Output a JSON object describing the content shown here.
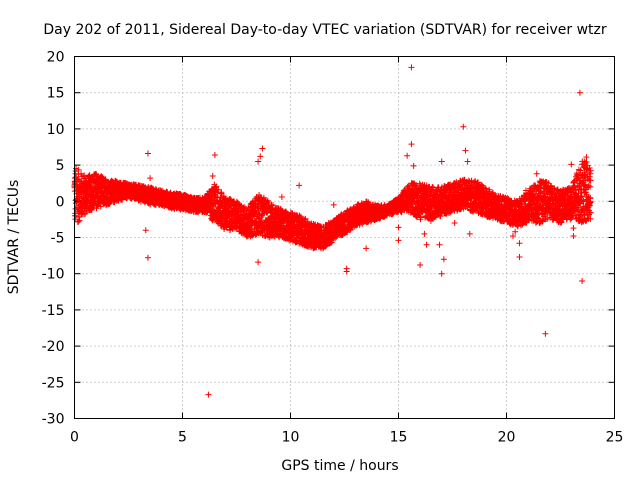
{
  "chart_data": {
    "type": "scatter",
    "title": "Day 202 of 2011, Sidereal Day-to-day VTEC variation (SDTVAR) for receiver wtzr",
    "xlabel": "GPS time / hours",
    "ylabel": "SDTVAR / TECUs",
    "xlim": [
      0,
      25
    ],
    "ylim": [
      -30,
      20
    ],
    "xticks": [
      0,
      5,
      10,
      15,
      20,
      25
    ],
    "yticks": [
      -30,
      -25,
      -20,
      -15,
      -10,
      -5,
      0,
      5,
      10,
      15,
      20
    ],
    "grid": true,
    "marker": "+",
    "color": "#ff0000",
    "series": [
      {
        "name": "SDTVAR",
        "band_x": [
          0.0,
          0.3,
          0.6,
          1.0,
          1.5,
          2.0,
          2.5,
          3.0,
          3.5,
          4.0,
          4.5,
          5.0,
          5.5,
          6.0,
          6.5,
          7.0,
          7.5,
          8.0,
          8.5,
          9.0,
          9.5,
          10.0,
          10.5,
          11.0,
          11.5,
          12.0,
          12.5,
          13.0,
          13.5,
          14.0,
          14.5,
          15.0,
          15.5,
          16.0,
          16.5,
          17.0,
          17.5,
          18.0,
          18.5,
          19.0,
          19.5,
          20.0,
          20.5,
          21.0,
          21.5,
          22.0,
          22.5,
          23.0,
          23.5,
          23.9
        ],
        "band_high": [
          5.0,
          4.0,
          3.5,
          4.0,
          3.0,
          2.8,
          2.5,
          2.2,
          2.0,
          1.5,
          1.2,
          1.0,
          0.5,
          0.5,
          2.5,
          0.5,
          0.0,
          -1.0,
          1.0,
          0.0,
          -1.0,
          -1.5,
          -2.0,
          -3.0,
          -3.5,
          -2.5,
          -1.5,
          -0.5,
          0.0,
          -0.5,
          -0.5,
          0.5,
          2.5,
          2.5,
          2.0,
          2.0,
          2.5,
          3.0,
          3.0,
          2.0,
          1.0,
          0.5,
          0.0,
          1.5,
          3.0,
          2.5,
          1.5,
          2.0,
          6.0,
          5.0
        ],
        "band_low": [
          -3.5,
          -2.5,
          -1.5,
          -1.0,
          -0.5,
          0.0,
          0.5,
          0.0,
          -0.5,
          -0.5,
          -1.0,
          -1.2,
          -1.5,
          -1.5,
          -3.0,
          -4.0,
          -4.0,
          -5.0,
          -4.5,
          -5.0,
          -5.0,
          -5.5,
          -6.0,
          -6.5,
          -6.5,
          -5.5,
          -4.5,
          -3.5,
          -3.0,
          -2.5,
          -2.0,
          -1.5,
          -1.5,
          -2.5,
          -2.5,
          -2.0,
          -1.5,
          -1.0,
          -1.5,
          -2.0,
          -2.5,
          -3.0,
          -3.5,
          -3.0,
          -3.0,
          -2.5,
          -3.0,
          -2.5,
          -3.0,
          -2.5
        ],
        "outliers": [
          [
            3.4,
            6.6
          ],
          [
            3.4,
            -7.8
          ],
          [
            3.3,
            -4.0
          ],
          [
            3.5,
            3.2
          ],
          [
            6.2,
            -26.7
          ],
          [
            6.5,
            6.4
          ],
          [
            6.4,
            3.5
          ],
          [
            8.5,
            -8.4
          ],
          [
            8.5,
            5.5
          ],
          [
            8.7,
            7.3
          ],
          [
            8.6,
            6.2
          ],
          [
            9.6,
            0.6
          ],
          [
            10.4,
            2.2
          ],
          [
            12.0,
            -0.5
          ],
          [
            12.6,
            -9.3
          ],
          [
            12.6,
            -9.7
          ],
          [
            13.5,
            -6.5
          ],
          [
            15.0,
            -3.6
          ],
          [
            15.0,
            -5.4
          ],
          [
            15.4,
            6.3
          ],
          [
            15.6,
            18.5
          ],
          [
            15.6,
            7.9
          ],
          [
            15.7,
            4.9
          ],
          [
            16.0,
            -8.8
          ],
          [
            16.2,
            -4.5
          ],
          [
            16.3,
            -6.0
          ],
          [
            16.5,
            -2.7
          ],
          [
            16.9,
            -6.0
          ],
          [
            17.0,
            -10.0
          ],
          [
            17.1,
            -8.0
          ],
          [
            17.0,
            5.5
          ],
          [
            17.6,
            -3.0
          ],
          [
            18.0,
            10.3
          ],
          [
            18.1,
            7.0
          ],
          [
            18.2,
            5.5
          ],
          [
            18.3,
            -4.5
          ],
          [
            20.3,
            -4.8
          ],
          [
            20.4,
            -4.2
          ],
          [
            20.6,
            -5.8
          ],
          [
            20.6,
            -7.7
          ],
          [
            20.9,
            1.5
          ],
          [
            21.4,
            3.8
          ],
          [
            21.8,
            -18.3
          ],
          [
            23.0,
            5.1
          ],
          [
            23.1,
            -3.7
          ],
          [
            23.1,
            -4.8
          ],
          [
            23.4,
            15.0
          ],
          [
            23.5,
            -11.0
          ],
          [
            23.6,
            5.5
          ],
          [
            23.7,
            6.1
          ]
        ]
      }
    ]
  }
}
